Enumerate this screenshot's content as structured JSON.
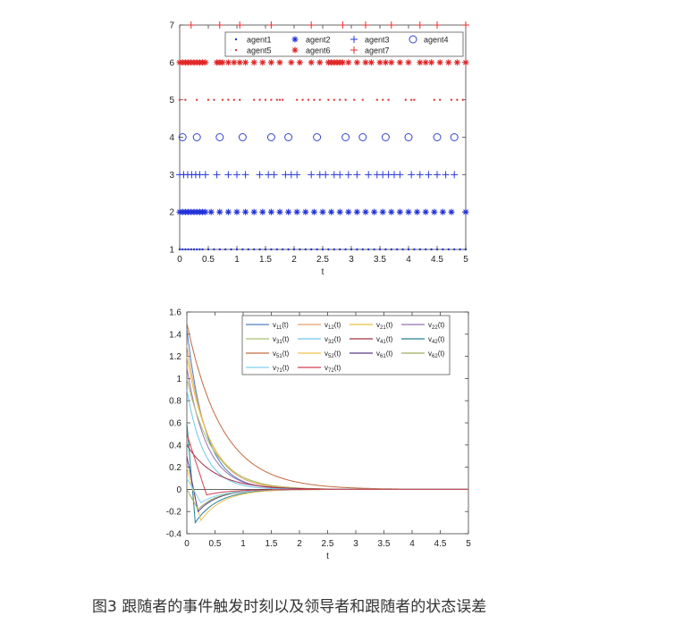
{
  "chart_data": [
    {
      "type": "scatter",
      "title": "",
      "xlabel": "t",
      "ylabel": "",
      "xlim": [
        0,
        5
      ],
      "ylim": [
        1,
        7
      ],
      "xticks": [
        "0",
        "0.5",
        "1",
        "1.5",
        "2",
        "2.5",
        "3",
        "3.5",
        "4",
        "4.5",
        "5"
      ],
      "yticks": [
        "1",
        "2",
        "3",
        "4",
        "5",
        "6",
        "7"
      ],
      "grid": false,
      "legend_position": "top-right",
      "legend_columns": 4,
      "series": [
        {
          "name": "agent1",
          "y": 1,
          "marker": "dot",
          "color": "#2233cc",
          "x": [
            0.0,
            0.05,
            0.1,
            0.15,
            0.2,
            0.25,
            0.3,
            0.35,
            0.4,
            0.5,
            0.6,
            0.7,
            0.8,
            0.9,
            1.0,
            1.1,
            1.2,
            1.3,
            1.4,
            1.5,
            1.6,
            1.7,
            1.8,
            1.9,
            2.0,
            2.1,
            2.2,
            2.3,
            2.4,
            2.5,
            2.6,
            2.7,
            2.8,
            2.9,
            3.0,
            3.1,
            3.2,
            3.3,
            3.4,
            3.5,
            3.6,
            3.7,
            3.8,
            3.9,
            4.0,
            4.1,
            4.2,
            4.3,
            4.4,
            4.5,
            4.6,
            4.7,
            4.8,
            4.9,
            5.0
          ]
        },
        {
          "name": "agent2",
          "y": 2,
          "marker": "asterisk",
          "color": "#1f2fd8",
          "x": [
            0.0,
            0.05,
            0.1,
            0.15,
            0.2,
            0.25,
            0.3,
            0.35,
            0.4,
            0.45,
            0.55,
            0.7,
            0.85,
            1.0,
            1.15,
            1.3,
            1.45,
            1.6,
            1.75,
            1.9,
            2.05,
            2.2,
            2.35,
            2.5,
            2.65,
            2.8,
            2.95,
            3.1,
            3.25,
            3.4,
            3.55,
            3.7,
            3.85,
            4.0,
            4.15,
            4.3,
            4.45,
            4.6,
            4.75,
            5.0
          ]
        },
        {
          "name": "agent3",
          "y": 3,
          "marker": "plus",
          "color": "#2a3ad8",
          "x": [
            0.0,
            0.07,
            0.14,
            0.21,
            0.28,
            0.35,
            0.45,
            0.65,
            0.85,
            1.0,
            1.15,
            1.4,
            1.55,
            1.65,
            1.85,
            1.95,
            2.05,
            2.3,
            2.45,
            2.55,
            2.7,
            2.8,
            2.95,
            3.1,
            3.3,
            3.45,
            3.55,
            3.65,
            3.75,
            3.85,
            4.05,
            4.2,
            4.35,
            4.5,
            4.65,
            4.8
          ]
        },
        {
          "name": "agent4",
          "y": 4,
          "marker": "circle",
          "color": "#3344cc",
          "x": [
            0.05,
            0.3,
            0.7,
            1.1,
            1.6,
            1.9,
            2.4,
            2.9,
            3.2,
            3.6,
            4.0,
            4.5,
            4.8
          ]
        },
        {
          "name": "agent5",
          "y": 5,
          "marker": "dot",
          "color": "#e03a3a",
          "x": [
            0.0,
            0.1,
            0.3,
            0.5,
            0.6,
            0.75,
            0.85,
            0.95,
            1.05,
            1.3,
            1.4,
            1.5,
            1.6,
            1.7,
            1.75,
            1.8,
            2.05,
            2.15,
            2.25,
            2.35,
            2.45,
            2.6,
            2.7,
            2.8,
            2.9,
            3.05,
            3.2,
            3.45,
            3.55,
            3.65,
            3.95,
            4.05,
            4.1,
            4.45,
            4.55,
            4.75,
            4.85,
            4.95
          ]
        },
        {
          "name": "agent6",
          "y": 6,
          "marker": "asterisk",
          "color": "#e02424",
          "x": [
            0.0,
            0.05,
            0.1,
            0.15,
            0.2,
            0.25,
            0.3,
            0.35,
            0.4,
            0.45,
            0.65,
            0.7,
            0.75,
            0.85,
            0.95,
            1.05,
            1.15,
            1.3,
            1.45,
            1.6,
            1.75,
            1.95,
            2.1,
            2.3,
            2.45,
            2.6,
            2.65,
            2.7,
            2.75,
            2.8,
            2.85,
            2.95,
            3.1,
            3.25,
            3.35,
            3.5,
            3.6,
            3.7,
            3.85,
            4.0,
            4.2,
            4.3,
            4.4,
            4.55,
            4.7,
            4.85,
            5.0
          ]
        },
        {
          "name": "agent7",
          "y": 7,
          "marker": "plus",
          "color": "#e23030",
          "x": [
            0.2,
            0.7,
            1.05,
            1.6,
            2.3,
            2.85,
            3.25,
            3.7,
            4.2,
            4.5,
            5.0
          ]
        }
      ]
    },
    {
      "type": "line",
      "title": "",
      "xlabel": "t",
      "ylabel": "",
      "xlim": [
        0,
        5
      ],
      "ylim": [
        -0.4,
        1.6
      ],
      "xticks": [
        "0",
        "0.5",
        "1",
        "1.5",
        "2",
        "2.5",
        "3",
        "3.5",
        "4",
        "4.5",
        "5"
      ],
      "yticks": [
        "1.6",
        "1.4",
        "1.2",
        "1",
        "0.8",
        "0.6",
        "0.4",
        "0.2",
        "0",
        "-0.2",
        "-0.4"
      ],
      "grid": false,
      "legend_position": "top-right",
      "legend_columns": 4,
      "series": [
        {
          "label": "v",
          "sub": "11",
          "arg": "(t)",
          "color": "#4f7fc4",
          "y0": 1.45,
          "ymin": 0.0,
          "tmin": 0.0,
          "decay": 3.0
        },
        {
          "label": "v",
          "sub": "12",
          "arg": "(t)",
          "color": "#e0a070",
          "y0": 1.3,
          "ymin": 0.0,
          "tmin": 0.0,
          "decay": 2.6
        },
        {
          "label": "v",
          "sub": "21",
          "arg": "(t)",
          "color": "#e8c040",
          "y0": 1.2,
          "ymin": 0.0,
          "tmin": 0.0,
          "decay": 2.4
        },
        {
          "label": "v",
          "sub": "22",
          "arg": "(t)",
          "color": "#9b70b0",
          "y0": 1.1,
          "ymin": 0.0,
          "tmin": 0.0,
          "decay": 2.8
        },
        {
          "label": "v",
          "sub": "31",
          "arg": "(t)",
          "color": "#a8c070",
          "y0": 1.0,
          "ymin": 0.0,
          "tmin": 0.0,
          "decay": 2.2
        },
        {
          "label": "v",
          "sub": "32",
          "arg": "(t)",
          "color": "#70c8e8",
          "y0": 0.9,
          "ymin": 0.0,
          "tmin": 0.0,
          "decay": 3.2
        },
        {
          "label": "v",
          "sub": "41",
          "arg": "(t)",
          "color": "#a03048",
          "y0": 0.4,
          "ymin": 0.0,
          "tmin": 0.0,
          "decay": 2.0
        },
        {
          "label": "v",
          "sub": "42",
          "arg": "(t)",
          "color": "#208090",
          "y0": 0.6,
          "ymin": -0.3,
          "tmin": 0.15,
          "decay": 2.5
        },
        {
          "label": "v",
          "sub": "51",
          "arg": "(t)",
          "color": "#c06a40",
          "y0": 1.5,
          "ymin": 0.0,
          "tmin": 0.0,
          "decay": 1.6
        },
        {
          "label": "v",
          "sub": "52",
          "arg": "(t)",
          "color": "#f0c050",
          "y0": 0.2,
          "ymin": -0.28,
          "tmin": 0.25,
          "decay": 2.5
        },
        {
          "label": "v",
          "sub": "61",
          "arg": "(t)",
          "color": "#5b3c88",
          "y0": 0.3,
          "ymin": -0.2,
          "tmin": 0.2,
          "decay": 2.8
        },
        {
          "label": "v",
          "sub": "62",
          "arg": "(t)",
          "color": "#9cae60",
          "y0": 0.0,
          "ymin": -0.18,
          "tmin": 0.2,
          "decay": 2.8
        },
        {
          "label": "v",
          "sub": "71",
          "arg": "(t)",
          "color": "#7fd0ee",
          "y0": 0.1,
          "ymin": -0.12,
          "tmin": 0.25,
          "decay": 2.6
        },
        {
          "label": "v",
          "sub": "72",
          "arg": "(t)",
          "color": "#d04050",
          "y0": 0.5,
          "ymin": -0.05,
          "tmin": 0.35,
          "decay": 2.4
        }
      ]
    }
  ],
  "caption": "图3 跟随者的事件触发时刻以及领导者和跟随者的状态误差"
}
